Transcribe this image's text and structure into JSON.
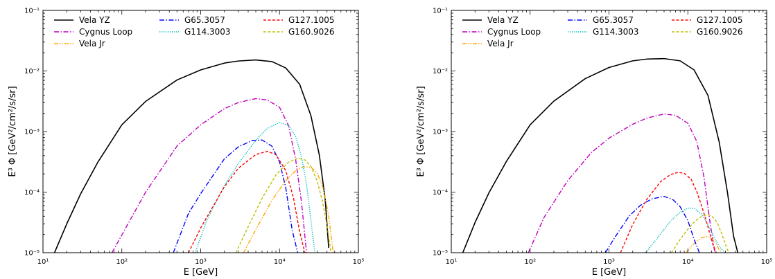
{
  "chart_data": [
    {
      "type": "line",
      "xscale": "log",
      "yscale": "log",
      "xlim": [
        10,
        100000
      ],
      "ylim": [
        1e-05,
        0.1
      ],
      "xlabel": "E [GeV]",
      "ylabel": "E³ Φ [GeV²/cm²/s/sr]",
      "legend": "top-left",
      "grid": false,
      "x_ticks": [
        "10¹",
        "10²",
        "10³",
        "10⁴",
        "10⁵"
      ],
      "y_ticks": [
        "10⁻⁵",
        "10⁻⁴",
        "10⁻³",
        "10⁻²",
        "10⁻¹"
      ],
      "series": [
        {
          "name": "Vela YZ",
          "color": "#000000",
          "dash": "solid",
          "x": [
            14,
            20,
            30,
            50,
            100,
            200,
            500,
            1000,
            2000,
            3000,
            5000,
            8000,
            12000,
            18000,
            25000,
            32000,
            38000,
            42000
          ],
          "y": [
            1e-05,
            2.98e-05,
            9.33e-05,
            0.000317,
            0.00129,
            0.00314,
            0.00709,
            0.0104,
            0.0135,
            0.0146,
            0.0152,
            0.0143,
            0.0112,
            0.00603,
            0.00183,
            0.000407,
            7.44e-05,
            1.2e-05
          ]
        },
        {
          "name": "Cygnus Loop",
          "color": "#bf00bf",
          "dash": "dashdot",
          "x": [
            75,
            100,
            200,
            500,
            1000,
            2000,
            3000,
            5000,
            7000,
            10000,
            13000,
            16000,
            19000,
            22000
          ],
          "y": [
            1e-05,
            1.96e-05,
            9.95e-05,
            0.000574,
            0.00129,
            0.00239,
            0.00301,
            0.0035,
            0.00332,
            0.00251,
            0.00126,
            0.000347,
            6.76e-05,
            1e-05
          ]
        },
        {
          "name": "Vela Jr",
          "color": "#ffa500",
          "dash": "dashdotdot",
          "x": [
            3500,
            5000,
            8000,
            12000,
            16000,
            20000,
            25000,
            30000,
            36000,
            42000,
            48000
          ],
          "y": [
            1e-05,
            2.41e-05,
            7.27e-05,
            0.000155,
            0.000226,
            0.000262,
            0.000257,
            0.000209,
            0.000113,
            4.06e-05,
            1e-05
          ]
        },
        {
          "name": "G65.3057",
          "color": "#0000ff",
          "dash": "dashdot",
          "x": [
            450,
            700,
            1000,
            2000,
            3000,
            4500,
            6000,
            8000,
            10000,
            12000,
            14500,
            17000
          ],
          "y": [
            1e-05,
            4.45e-05,
            9.45e-05,
            0.000355,
            0.000558,
            0.000711,
            0.000726,
            0.000574,
            0.000317,
            0.000118,
            2.32e-05,
            1e-05
          ]
        },
        {
          "name": "G114.3003",
          "color": "#00bfbf",
          "dash": "dotted",
          "x": [
            850,
            1200,
            2000,
            3000,
            5000,
            7000,
            10000,
            13000,
            16000,
            19000,
            22000,
            25000,
            28000
          ],
          "y": [
            1e-05,
            3.47e-05,
            0.000129,
            0.000296,
            0.000715,
            0.00113,
            0.00141,
            0.00127,
            0.000828,
            0.000387,
            0.000132,
            3.47e-05,
            1e-05
          ]
        },
        {
          "name": "G127.1005",
          "color": "#ff0000",
          "dash": "dashed",
          "x": [
            700,
            1000,
            2000,
            3000,
            5000,
            7000,
            9000,
            12000,
            15000,
            18000,
            21000
          ],
          "y": [
            1e-05,
            2.56e-05,
            0.000123,
            0.000248,
            0.000418,
            0.000471,
            0.000417,
            0.000226,
            8.13e-05,
            2.19e-05,
            1e-05
          ]
        },
        {
          "name": "G160.9026",
          "color": "#bfbf00",
          "dash": "dashed",
          "x": [
            2800,
            4000,
            6000,
            9000,
            13000,
            17000,
            21000,
            25000,
            30000,
            35000,
            40000,
            45000
          ],
          "y": [
            1e-05,
            2.69e-05,
            7.87e-05,
            0.000192,
            0.000314,
            0.000362,
            0.00034,
            0.000266,
            0.000153,
            7.1e-05,
            2.84e-05,
            1e-05
          ]
        }
      ]
    },
    {
      "type": "line",
      "xscale": "log",
      "yscale": "log",
      "xlim": [
        10,
        100000
      ],
      "ylim": [
        1e-05,
        0.1
      ],
      "xlabel": "E [GeV]",
      "ylabel": "E³ Φ [GeV²/cm²/s/sr]",
      "legend": "top-left",
      "grid": false,
      "x_ticks": [
        "10¹",
        "10²",
        "10³",
        "10⁴",
        "10⁵"
      ],
      "y_ticks": [
        "10⁻⁵",
        "10⁻⁴",
        "10⁻³",
        "10⁻²",
        "10⁻¹"
      ],
      "series": [
        {
          "name": "Vela YZ",
          "color": "#000000",
          "dash": "solid",
          "x": [
            14,
            20,
            30,
            50,
            100,
            200,
            500,
            1000,
            2000,
            3000,
            5000,
            8000,
            12000,
            18000,
            25000,
            32000,
            38000,
            43000
          ],
          "y": [
            1e-05,
            3.14e-05,
            9.71e-05,
            0.000321,
            0.00129,
            0.00318,
            0.00747,
            0.0114,
            0.0147,
            0.0157,
            0.016,
            0.0147,
            0.0104,
            0.00395,
            0.000669,
            9.38e-05,
            1.88e-05,
            1e-05
          ]
        },
        {
          "name": "Cygnus Loop",
          "color": "#bf00bf",
          "dash": "dashdot",
          "x": [
            95,
            150,
            300,
            600,
            1000,
            2000,
            3000,
            5000,
            7000,
            10000,
            13000,
            16000,
            19000,
            22000
          ],
          "y": [
            1e-05,
            3.81e-05,
            0.000155,
            0.000451,
            0.000777,
            0.00132,
            0.00166,
            0.00195,
            0.00185,
            0.00137,
            0.000685,
            0.000179,
            3.33e-05,
            1e-05
          ]
        },
        {
          "name": "Vela Jr",
          "color": "#ffa500",
          "dash": "dashdotdot",
          "x": [
            9500,
            11000,
            13000,
            15000,
            17000,
            19000,
            21000,
            23000,
            25000,
            27000
          ],
          "y": [
            1e-05,
            1.27e-05,
            1.56e-05,
            1.76e-05,
            1.85e-05,
            1.8e-05,
            1.62e-05,
            1.38e-05,
            1.12e-05,
            1e-05
          ]
        },
        {
          "name": "G65.3057",
          "color": "#0000ff",
          "dash": "dashdot",
          "x": [
            900,
            1200,
            1800,
            2500,
            3500,
            5000,
            6500,
            8000,
            10000,
            12000,
            14000
          ],
          "y": [
            1e-05,
            1.83e-05,
            4.01e-05,
            6.05e-05,
            7.72e-05,
            8.51e-05,
            7.48e-05,
            5.74e-05,
            3.39e-05,
            1.67e-05,
            1e-05
          ]
        },
        {
          "name": "G114.3003",
          "color": "#00bfbf",
          "dash": "dotted",
          "x": [
            2900,
            4000,
            6000,
            8000,
            10000,
            12000,
            15000,
            18000,
            21000,
            24000,
            27000,
            30000
          ],
          "y": [
            1e-05,
            1.66e-05,
            3.31e-05,
            4.65e-05,
            5.43e-05,
            5.42e-05,
            4.32e-05,
            2.89e-05,
            1.93e-05,
            1.38e-05,
            1.13e-05,
            1e-05
          ]
        },
        {
          "name": "G127.1005",
          "color": "#ff0000",
          "dash": "dashed",
          "x": [
            1400,
            2000,
            3000,
            4500,
            6000,
            7500,
            9000,
            11000,
            13000,
            15000,
            17000,
            19000,
            21000,
            23000
          ],
          "y": [
            1e-05,
            2.92e-05,
            7.49e-05,
            0.000148,
            0.000194,
            0.000212,
            0.000204,
            0.000164,
            0.000102,
            5.88e-05,
            3.47e-05,
            2.08e-05,
            1.31e-05,
            1e-05
          ]
        },
        {
          "name": "G160.9026",
          "color": "#bfbf00",
          "dash": "dashed",
          "x": [
            6200,
            8000,
            10000,
            12000,
            14000,
            16000,
            18000,
            20000,
            22000,
            24000,
            27000,
            30000,
            33000
          ],
          "y": [
            1e-05,
            1.66e-05,
            2.44e-05,
            3.19e-05,
            3.77e-05,
            4.12e-05,
            4.23e-05,
            4.04e-05,
            3.59e-05,
            2.97e-05,
            2.05e-05,
            1.37e-05,
            1e-05
          ]
        }
      ]
    }
  ]
}
